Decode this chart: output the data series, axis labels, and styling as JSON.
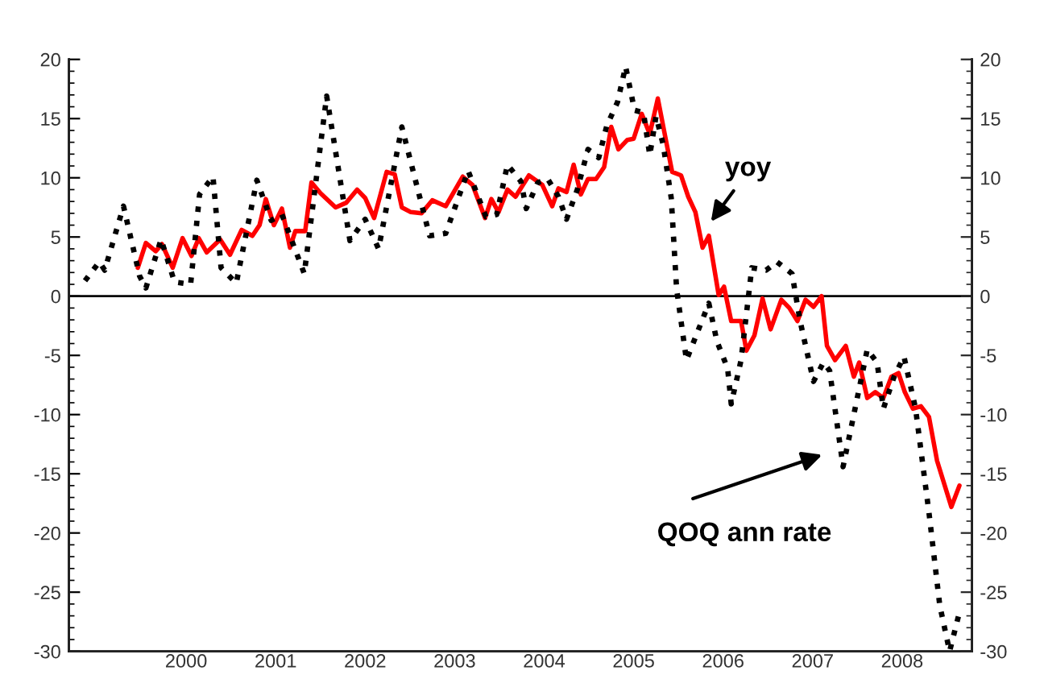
{
  "chart_data": {
    "type": "line",
    "xlim": [
      1999.19,
      2009.28
    ],
    "xticks": [
      {
        "value": 2000.5,
        "label": "2000"
      },
      {
        "value": 2001.5,
        "label": "2001"
      },
      {
        "value": 2002.5,
        "label": "2002"
      },
      {
        "value": 2003.5,
        "label": "2003"
      },
      {
        "value": 2004.5,
        "label": "2004"
      },
      {
        "value": 2005.5,
        "label": "2005"
      },
      {
        "value": 2006.5,
        "label": "2006"
      },
      {
        "value": 2007.5,
        "label": "2007"
      },
      {
        "value": 2008.5,
        "label": "2008"
      }
    ],
    "ylim": [
      -30,
      20
    ],
    "yticks": [
      -30,
      -25,
      -20,
      -15,
      -10,
      -5,
      0,
      5,
      10,
      15,
      20
    ],
    "y2lim": [
      -30,
      20
    ],
    "y2ticks": [
      -30,
      -25,
      -20,
      -15,
      -10,
      -5,
      0,
      5,
      10,
      15,
      20
    ],
    "grid": false,
    "legend": false,
    "marker": "none",
    "ref_lines": [
      {
        "axis": "y",
        "value": 0,
        "color": "#000000"
      }
    ],
    "annotations": [
      "yoy",
      "QOQ ann rate"
    ],
    "series": [
      {
        "color": "#ff0000",
        "line_style": "solid",
        "x": [
          1999.96,
          2000.05,
          2000.16,
          2000.23,
          2000.35,
          2000.46,
          2000.56,
          2000.64,
          2000.73,
          2000.88,
          2000.99,
          2001.12,
          2001.24,
          2001.32,
          2001.39,
          2001.48,
          2001.57,
          2001.66,
          2001.72,
          2001.83,
          2001.9,
          2002.0,
          2002.17,
          2002.29,
          2002.41,
          2002.5,
          2002.6,
          2002.74,
          2002.83,
          2002.91,
          2003.01,
          2003.13,
          2003.25,
          2003.4,
          2003.59,
          2003.7,
          2003.84,
          2003.91,
          2003.99,
          2004.09,
          2004.18,
          2004.33,
          2004.48,
          2004.59,
          2004.66,
          2004.75,
          2004.83,
          2004.91,
          2004.99,
          2005.08,
          2005.17,
          2005.25,
          2005.33,
          2005.43,
          2005.5,
          2005.59,
          2005.68,
          2005.77,
          2005.86,
          2005.93,
          2006.03,
          2006.11,
          2006.19,
          2006.27,
          2006.34,
          2006.45,
          2006.51,
          2006.59,
          2006.7,
          2006.76,
          2006.85,
          2006.94,
          2007.03,
          2007.15,
          2007.24,
          2007.33,
          2007.42,
          2007.51,
          2007.6,
          2007.66,
          2007.75,
          2007.87,
          2007.96,
          2008.02,
          2008.11,
          2008.2,
          2008.29,
          2008.38,
          2008.46,
          2008.53,
          2008.62,
          2008.71,
          2008.8,
          2008.89,
          2009.05,
          2009.14
        ],
        "values": [
          2.4,
          4.5,
          3.8,
          4.4,
          2.4,
          4.9,
          3.4,
          4.9,
          3.7,
          4.8,
          3.5,
          5.6,
          5.1,
          6.0,
          8.2,
          6.0,
          7.4,
          4.1,
          5.5,
          5.5,
          9.6,
          8.7,
          7.5,
          7.9,
          9.0,
          8.3,
          6.6,
          10.5,
          10.3,
          7.5,
          7.1,
          7.0,
          8.1,
          7.6,
          10.1,
          9.4,
          6.6,
          8.2,
          7.1,
          9.0,
          8.4,
          10.2,
          9.4,
          7.6,
          9.1,
          8.8,
          11.1,
          8.6,
          9.9,
          9.9,
          10.9,
          14.3,
          12.4,
          13.2,
          13.3,
          15.4,
          13.7,
          16.7,
          13.2,
          10.5,
          10.2,
          8.4,
          7.1,
          4.1,
          5.1,
          0.1,
          0.8,
          -2.1,
          -2.1,
          -4.6,
          -3.3,
          -0.2,
          -2.8,
          -0.3,
          -1.0,
          -2.1,
          -0.3,
          -0.9,
          0.0,
          -4.2,
          -5.4,
          -4.2,
          -6.8,
          -5.6,
          -8.6,
          -8.1,
          -8.6,
          -6.8,
          -6.5,
          -8.1,
          -9.5,
          -9.3,
          -10.2,
          -13.9,
          -17.8,
          -16.0
        ]
      },
      {
        "color": "#000000",
        "line_style": "dotted",
        "x": [
          1999.37,
          1999.53,
          1999.59,
          1999.8,
          1999.98,
          2000.05,
          2000.22,
          2000.37,
          2000.55,
          2000.65,
          2000.8,
          2000.89,
          2001.06,
          2001.29,
          2001.45,
          2001.57,
          2001.82,
          2002.07,
          2002.33,
          2002.5,
          2002.65,
          2002.91,
          2003.22,
          2003.4,
          2003.65,
          2003.85,
          2003.97,
          2004.09,
          2004.24,
          2004.3,
          2004.43,
          2004.54,
          2004.66,
          2004.75,
          2004.87,
          2004.99,
          2005.11,
          2005.2,
          2005.32,
          2005.41,
          2005.51,
          2005.61,
          2005.68,
          2005.75,
          2005.83,
          2005.92,
          2005.98,
          2006.09,
          2006.34,
          2006.43,
          2006.55,
          2006.59,
          2006.7,
          2006.82,
          2006.98,
          2007.1,
          2007.27,
          2007.36,
          2007.51,
          2007.62,
          2007.69,
          2007.84,
          2007.96,
          2008.11,
          2008.22,
          2008.29,
          2008.41,
          2008.52,
          2008.65,
          2008.8,
          2008.92,
          2009.03,
          2009.13
        ],
        "values": [
          1.3,
          2.9,
          2.2,
          7.6,
          1.7,
          0.7,
          4.8,
          1.2,
          1.0,
          8.6,
          10.1,
          2.4,
          1.1,
          9.8,
          6.4,
          6.9,
          1.9,
          16.9,
          4.7,
          6.5,
          4.0,
          14.3,
          5.1,
          5.3,
          10.6,
          6.7,
          6.9,
          11.1,
          9.7,
          7.4,
          9.6,
          9.9,
          8.4,
          6.5,
          9.0,
          12.4,
          11.7,
          14.4,
          16.4,
          19.4,
          15.7,
          15.5,
          11.9,
          15.2,
          12.8,
          8.3,
          0.6,
          -5.4,
          -0.6,
          -3.8,
          -6.1,
          -9.1,
          -5.4,
          2.4,
          2.2,
          2.9,
          1.9,
          -2.1,
          -7.2,
          -5.6,
          -6.3,
          -14.4,
          -10.0,
          -4.5,
          -5.6,
          -9.5,
          -6.8,
          -5.1,
          -9.5,
          -18.3,
          -26.1,
          -30.0,
          -27.0
        ]
      }
    ]
  }
}
